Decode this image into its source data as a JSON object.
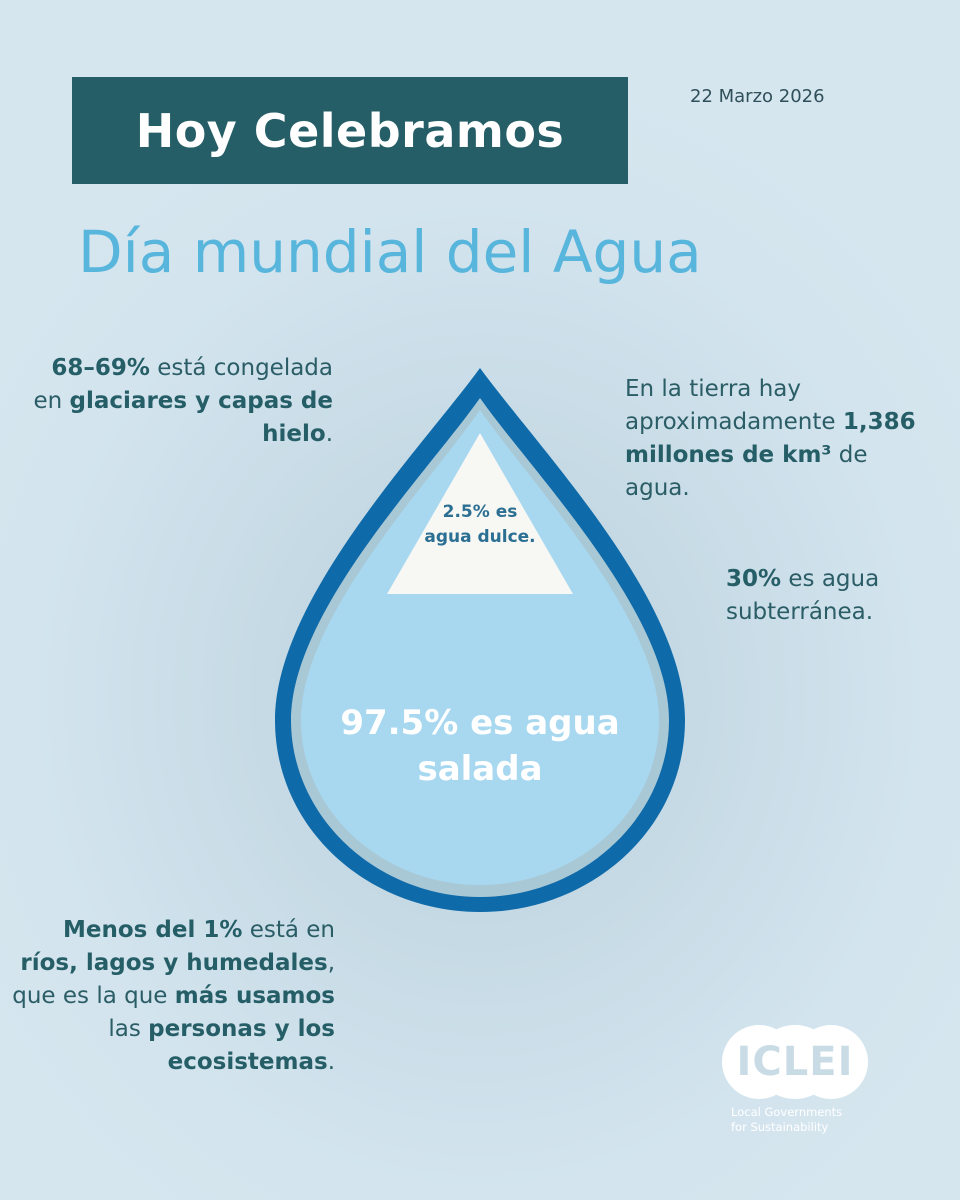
{
  "header": {
    "banner": "Hoy Celebramos",
    "date": "22 Marzo 2026"
  },
  "title": "Día mundial del Agua",
  "facts": {
    "ice": {
      "b1": "68–69%",
      "t1": " está congelada en ",
      "b2": "glaciares y capas de hielo",
      "t2": "."
    },
    "total": {
      "t1": "En la tierra hay aproximadamente ",
      "b1": "1,386 millones de km³",
      "t2": " de agua."
    },
    "groundwater": {
      "b1": "30%",
      "t1": " es agua subterránea."
    },
    "rivers": {
      "b1": "Menos del 1%",
      "t1": " está en ",
      "b2": "ríos, lagos y humedales",
      "t2": ", que es la que ",
      "b3": "más usamos",
      "t3": " las ",
      "b4": "personas y los ecosistemas",
      "t4": "."
    }
  },
  "drop": {
    "fresh": "2.5% es agua dulce.",
    "salt": "97.5% es agua salada"
  },
  "logo": {
    "word": "ICLEI",
    "sub1": "Local Governments",
    "sub2": "for Sustainability"
  },
  "colors": {
    "banner": "#255e66",
    "title": "#58b5dc",
    "drop_outline": "#0f6aa9",
    "drop_fill": "#a8d8f0",
    "fresh_triangle": "#f7f7f3"
  }
}
